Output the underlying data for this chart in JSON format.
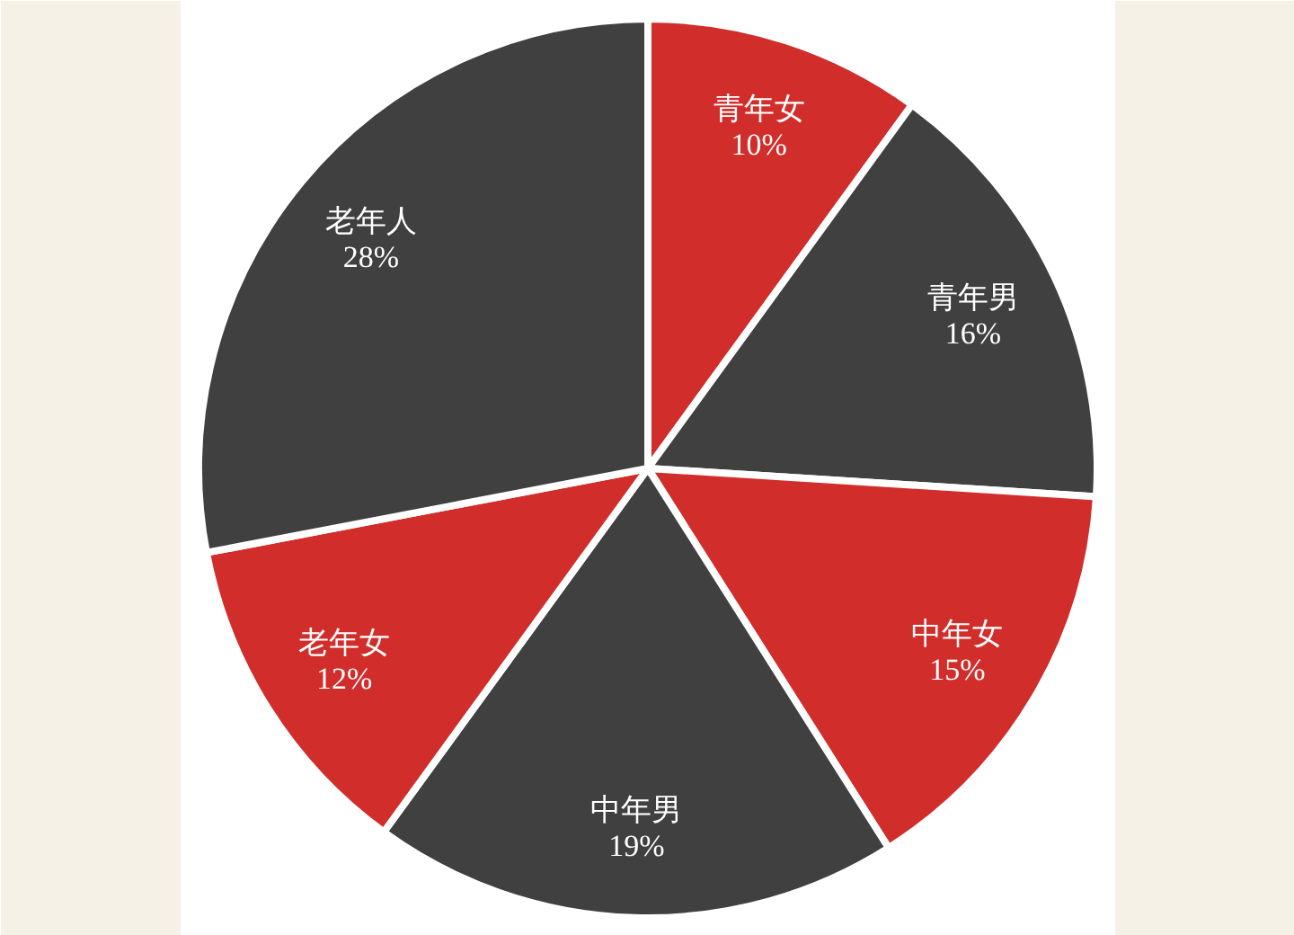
{
  "chart_data": {
    "type": "pie",
    "categories": [
      "青年女",
      "青年男",
      "中年女",
      "中年男",
      "老年女",
      "老年人"
    ],
    "values": [
      10,
      16,
      15,
      19,
      12,
      28
    ],
    "colors": [
      "#d12d2a",
      "#404040",
      "#d12d2a",
      "#404040",
      "#d12d2a",
      "#404040"
    ],
    "value_labels": [
      "10%",
      "16%",
      "15%",
      "19%",
      "12%",
      "28%"
    ]
  }
}
